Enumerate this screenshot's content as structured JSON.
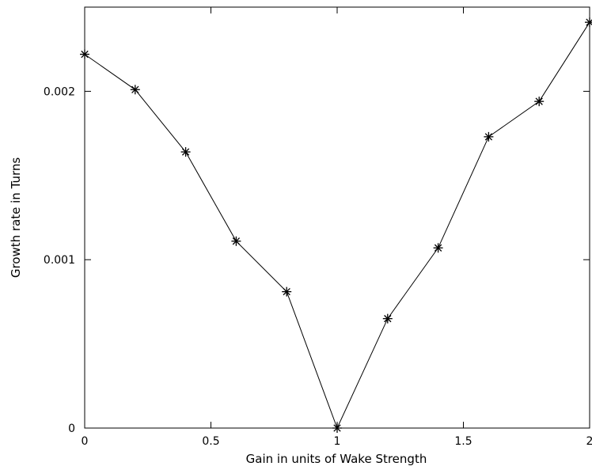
{
  "chart_data": {
    "type": "line",
    "title": "",
    "xlabel": "Gain in units of Wake Strength",
    "ylabel": "Growth rate in Turns",
    "xlim": [
      0,
      2
    ],
    "ylim": [
      0,
      0.0025
    ],
    "grid": false,
    "legend": "none",
    "x_ticks": [
      {
        "value": 0,
        "label": "0"
      },
      {
        "value": 0.5,
        "label": "0.5"
      },
      {
        "value": 1,
        "label": "1"
      },
      {
        "value": 1.5,
        "label": "1.5"
      },
      {
        "value": 2,
        "label": "2"
      }
    ],
    "y_ticks": [
      {
        "value": 0,
        "label": "0"
      },
      {
        "value": 0.001,
        "label": "0.001"
      },
      {
        "value": 0.002,
        "label": "0.002"
      }
    ],
    "series": [
      {
        "marker": "asterisk",
        "color": "#000000",
        "x": [
          0,
          0.2,
          0.4,
          0.6,
          0.8,
          1.0,
          1.2,
          1.4,
          1.6,
          1.8,
          2.0
        ],
        "y": [
          0.00222,
          0.00201,
          0.00164,
          0.00111,
          0.00081,
          0.0,
          0.00065,
          0.00107,
          0.00173,
          0.00194,
          0.00241
        ]
      }
    ]
  }
}
